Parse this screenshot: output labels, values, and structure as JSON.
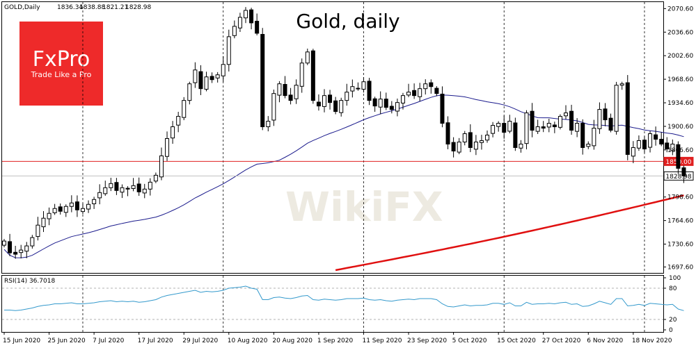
{
  "chart_data": {
    "type": "candlestick",
    "title": "Gold, daily",
    "symbol_header": "GOLD,Daily",
    "header_values": [
      "1836.34",
      "1838.88",
      "1821.21",
      "1828.98"
    ],
    "brand": {
      "name": "FxPro",
      "tagline": "Trade Like a Pro",
      "color": "#ee2a2a"
    },
    "watermark": "WikiFX",
    "price_axis": {
      "ticks": [
        "2070.60",
        "2036.60",
        "2002.60",
        "1968.60",
        "1934.60",
        "1900.60",
        "1866.60",
        "1798.60",
        "1764.60",
        "1730.60",
        "1697.60"
      ],
      "ylim": [
        1689,
        2080
      ]
    },
    "time_axis": {
      "labels": [
        "15 Jun 2020",
        "25 Jun 2020",
        "7 Jul 2020",
        "17 Jul 2020",
        "29 Jul 2020",
        "10 Aug 2020",
        "20 Aug 2020",
        "1 Sep 2020",
        "11 Sep 2020",
        "23 Sep 2020",
        "5 Oct 2020",
        "15 Oct 2020",
        "27 Oct 2020",
        "6 Nov 2020",
        "18 Nov 2020"
      ],
      "label_bar_index": [
        0,
        8,
        16,
        24,
        32,
        40,
        48,
        56,
        64,
        72,
        80,
        88,
        96,
        104,
        112
      ],
      "dashed_bar_index": [
        14,
        39,
        64,
        89,
        114
      ]
    },
    "horizontal_lines": [
      {
        "value": 1850.0,
        "label": "1850.00",
        "color": "#e02020"
      },
      {
        "value": 1828.98,
        "label": "1828.98",
        "color": "#c0c0c0"
      }
    ],
    "bull_color": "#ffffff",
    "bear_color": "#000000",
    "candles_close": [
      1735,
      1718,
      1716,
      1722,
      1728,
      1740,
      1758,
      1768,
      1775,
      1782,
      1778,
      1785,
      1790,
      1780,
      1782,
      1788,
      1795,
      1805,
      1812,
      1818,
      1808,
      1812,
      1810,
      1815,
      1806,
      1810,
      1820,
      1830,
      1858,
      1883,
      1900,
      1915,
      1938,
      1962,
      1982,
      1955,
      1972,
      1968,
      1975,
      1990,
      2030,
      2045,
      2058,
      2068,
      2050,
      2035,
      1900,
      1908,
      1948,
      1962,
      1945,
      1938,
      1960,
      1992,
      2008,
      1938,
      1930,
      1945,
      1935,
      1922,
      1938,
      1950,
      1958,
      1955,
      1965,
      1938,
      1930,
      1940,
      1928,
      1925,
      1935,
      1945,
      1950,
      1945,
      1955,
      1962,
      1958,
      1948,
      1905,
      1875,
      1865,
      1878,
      1890,
      1870,
      1878,
      1880,
      1888,
      1902,
      1905,
      1892,
      1908,
      1870,
      1875,
      1920,
      1895,
      1900,
      1898,
      1905,
      1900,
      1915,
      1920,
      1895,
      1905,
      1870,
      1875,
      1898,
      1925,
      1910,
      1895,
      1960,
      1962,
      1860,
      1870,
      1880,
      1868,
      1890,
      1882,
      1875,
      1868,
      1875,
      1840,
      1829
    ],
    "rsi": {
      "label": "RSI(14) 36.7018",
      "ylim": [
        0,
        100
      ],
      "levels": [
        "20",
        "80"
      ],
      "axis_ticks": [
        "100",
        "80",
        "20",
        "0"
      ],
      "color": "#3399cc",
      "values": [
        38,
        38,
        37,
        38,
        40,
        42,
        45,
        47,
        48,
        50,
        50,
        51,
        52,
        50,
        50,
        51,
        52,
        54,
        55,
        56,
        54,
        55,
        54,
        55,
        53,
        54,
        56,
        58,
        63,
        66,
        68,
        70,
        72,
        74,
        76,
        72,
        74,
        73,
        74,
        76,
        80,
        81,
        82,
        84,
        80,
        78,
        58,
        58,
        62,
        63,
        61,
        60,
        62,
        65,
        66,
        58,
        57,
        59,
        58,
        57,
        58,
        60,
        60,
        60,
        61,
        58,
        57,
        58,
        56,
        55,
        57,
        58,
        59,
        58,
        60,
        60,
        60,
        58,
        50,
        45,
        44,
        46,
        48,
        46,
        47,
        47,
        48,
        51,
        51,
        49,
        52,
        46,
        46,
        53,
        49,
        50,
        50,
        51,
        50,
        52,
        53,
        49,
        50,
        45,
        46,
        50,
        55,
        52,
        49,
        60,
        60,
        46,
        47,
        49,
        47,
        51,
        50,
        49,
        48,
        49,
        40,
        37
      ]
    }
  }
}
